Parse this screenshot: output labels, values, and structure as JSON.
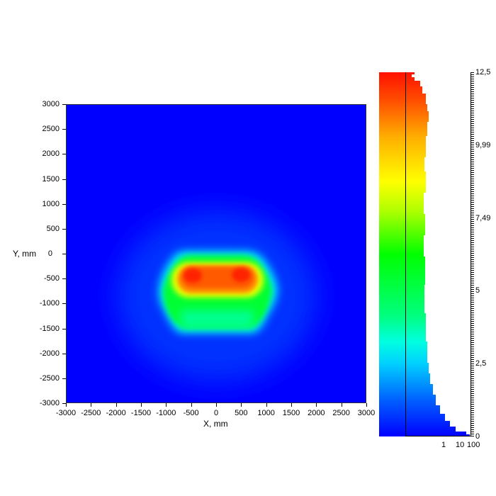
{
  "chart_data": {
    "type": "heatmap",
    "title": "",
    "xlabel": "X, mm",
    "ylabel": "Y, mm",
    "xlim": [
      -3000,
      3000
    ],
    "ylim": [
      -3000,
      3000
    ],
    "x_ticks": [
      "-3000",
      "-2500",
      "-2000",
      "-1500",
      "-1000",
      "-500",
      "0",
      "500",
      "1000",
      "1500",
      "2000",
      "2500",
      "3000"
    ],
    "y_ticks": [
      "3000",
      "2500",
      "2000",
      "1500",
      "1000",
      "500",
      "0",
      "-500",
      "-1000",
      "-1500",
      "-2000",
      "-2500",
      "-3000"
    ],
    "grid": false,
    "colorbar": {
      "range": [
        0,
        12.5
      ],
      "tick_labels": [
        "12,5",
        "9,99",
        "7,49",
        "5",
        "2,5",
        "0"
      ],
      "tick_values": [
        12.5,
        9.99,
        7.49,
        5,
        2.5,
        0
      ],
      "colormap": "jet (blue-cyan-green-yellow-red)",
      "histogram_axis_labels": [
        "1",
        "10",
        "100"
      ],
      "histogram_scale": "log"
    },
    "features": [
      {
        "description": "peak hot spot (red) left",
        "x": -450,
        "y": -400,
        "value": 12.0
      },
      {
        "description": "peak hot spot (red) right",
        "x": 400,
        "y": -400,
        "value": 12.0
      },
      {
        "description": "hot band (orange) center",
        "x": 0,
        "y": -400,
        "value": 11.0
      },
      {
        "description": "green lower region",
        "x": 0,
        "y": -1000,
        "value": 6.5
      },
      {
        "description": "cyan boundary lower",
        "x": 0,
        "y": -1550,
        "value": 3.0
      },
      {
        "description": "cyan boundary top",
        "x": 0,
        "y": -50,
        "value": 3.0
      },
      {
        "description": "background",
        "x": 0,
        "y": 2500,
        "value": 0.3
      }
    ],
    "blob_extent_mm": {
      "x": [
        -1150,
        1150
      ],
      "y": [
        -1600,
        0
      ]
    }
  }
}
